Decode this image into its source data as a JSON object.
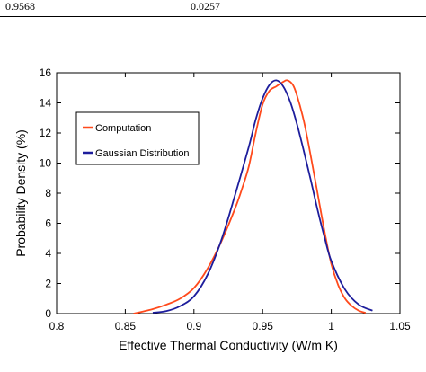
{
  "table": {
    "cells": [
      "0.9568",
      "0.0257"
    ]
  },
  "colors": {
    "computation": "#ff4a1c",
    "gaussian": "#1d1d9c"
  },
  "chart_data": {
    "type": "line",
    "xlabel": "Effective Thermal Conductivity (W/m K)",
    "ylabel": "Probability Density (%)",
    "xlim": [
      0.8,
      1.05
    ],
    "ylim": [
      0,
      16
    ],
    "xticks": [
      "0.8",
      "0.85",
      "0.9",
      "0.95",
      "1",
      "1.05"
    ],
    "yticks": [
      "0",
      "2",
      "4",
      "6",
      "8",
      "10",
      "12",
      "14",
      "16"
    ],
    "legend_position": "upper-left",
    "series": [
      {
        "name": "Computation",
        "color": "#ff4a1c",
        "x": [
          0.856,
          0.87,
          0.88,
          0.89,
          0.9,
          0.91,
          0.92,
          0.93,
          0.935,
          0.94,
          0.945,
          0.95,
          0.955,
          0.96,
          0.965,
          0.968,
          0.972,
          0.975,
          0.98,
          0.985,
          0.99,
          0.995,
          1.0,
          1.005,
          1.01,
          1.015,
          1.02,
          1.025
        ],
        "y": [
          0.0,
          0.3,
          0.6,
          1.0,
          1.7,
          3.0,
          4.8,
          7.0,
          8.3,
          9.8,
          12.0,
          13.9,
          14.8,
          15.1,
          15.4,
          15.5,
          15.2,
          14.5,
          12.8,
          10.5,
          8.0,
          5.5,
          3.3,
          1.9,
          1.0,
          0.5,
          0.2,
          0.05
        ]
      },
      {
        "name": "Gaussian Distribution",
        "color": "#1d1d9c",
        "x": [
          0.87,
          0.88,
          0.89,
          0.9,
          0.91,
          0.92,
          0.93,
          0.94,
          0.945,
          0.95,
          0.955,
          0.96,
          0.965,
          0.97,
          0.975,
          0.98,
          0.985,
          0.99,
          0.995,
          1.0,
          1.01,
          1.02,
          1.03
        ],
        "y": [
          0.06,
          0.17,
          0.5,
          1.15,
          2.6,
          4.9,
          7.9,
          11.1,
          12.9,
          14.3,
          15.2,
          15.5,
          15.1,
          14.1,
          12.6,
          10.8,
          8.9,
          6.9,
          5.1,
          3.5,
          1.6,
          0.6,
          0.2
        ]
      }
    ]
  }
}
